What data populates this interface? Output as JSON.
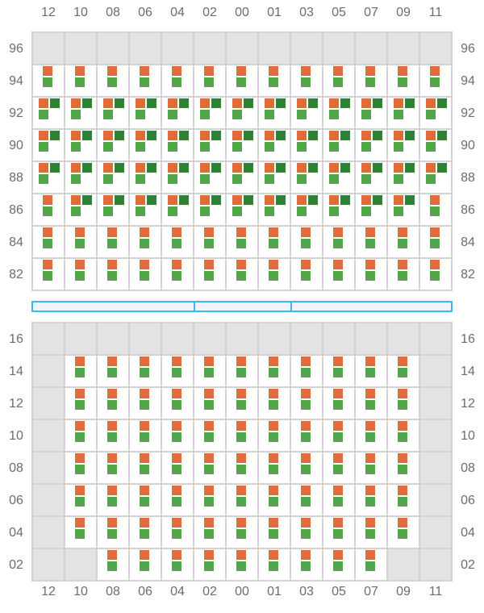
{
  "columns": [
    "12",
    "10",
    "08",
    "06",
    "04",
    "02",
    "00",
    "01",
    "03",
    "05",
    "07",
    "09",
    "11"
  ],
  "colors": {
    "orange": "#e06c37",
    "green": "#53a54a",
    "dark_green": "#2e8233",
    "empty": "#e3e3e6",
    "divider": "#3bb6ee"
  },
  "legend_codes": {
    "e": "empty",
    "s": "orange+green",
    "t": "orange+dark_green+green"
  },
  "top_section": {
    "rows": [
      {
        "label": "96",
        "cells": "eeeeeeeeeeeee"
      },
      {
        "label": "94",
        "cells": "sssssssssssss"
      },
      {
        "label": "92",
        "cells": "ttttttttttttt"
      },
      {
        "label": "90",
        "cells": "ttttttttttttt"
      },
      {
        "label": "88",
        "cells": "ttttttttttttt"
      },
      {
        "label": "86",
        "cells": "sttttttttttts"
      },
      {
        "label": "84",
        "cells": "sssssssssssss"
      },
      {
        "label": "82",
        "cells": "sssssssssssss"
      }
    ]
  },
  "bottom_section": {
    "rows": [
      {
        "label": "16",
        "cells": "eeeeeeeeeeeee"
      },
      {
        "label": "14",
        "cells": "essssssssssse"
      },
      {
        "label": "12",
        "cells": "essssssssssse"
      },
      {
        "label": "10",
        "cells": "essssssssssse"
      },
      {
        "label": "08",
        "cells": "essssssssssse"
      },
      {
        "label": "06",
        "cells": "essssssssssse"
      },
      {
        "label": "04",
        "cells": "essssssssssse"
      },
      {
        "label": "02",
        "cells": "eesssssssssee"
      }
    ]
  }
}
